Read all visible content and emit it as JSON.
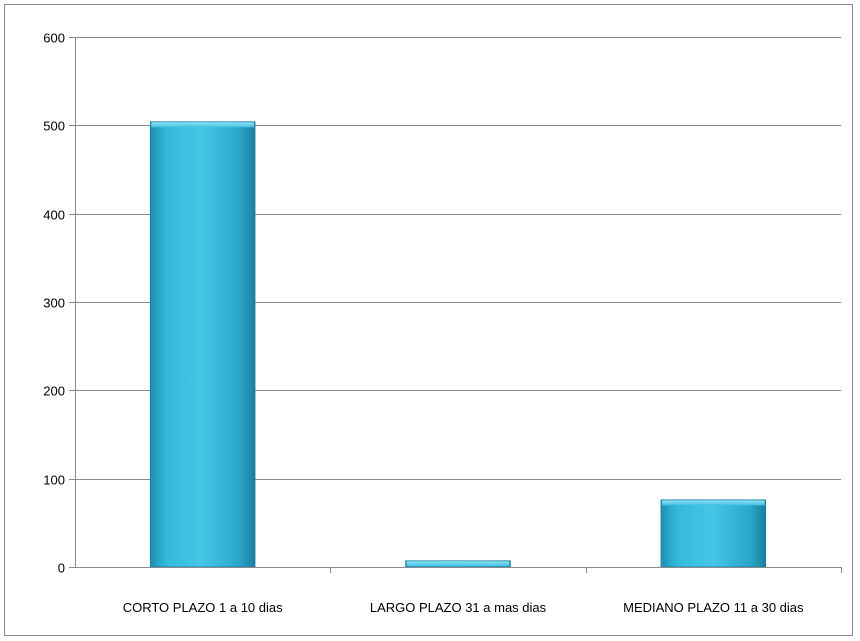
{
  "chart_data": {
    "type": "bar",
    "title": "",
    "xlabel": "",
    "ylabel": "",
    "categories": [
      "CORTO PLAZO 1 a 10 dias",
      "LARGO PLAZO 31 a mas dias",
      "MEDIANO PLAZO 11 a 30 dias"
    ],
    "values": [
      504,
      7,
      76
    ],
    "ylim": [
      0,
      600
    ],
    "yticks": [
      0,
      100,
      200,
      300,
      400,
      500,
      600
    ],
    "grid": true,
    "legend": "none",
    "bar_color": "#31b6d8",
    "bar_color_dark": "#1b86a8"
  }
}
